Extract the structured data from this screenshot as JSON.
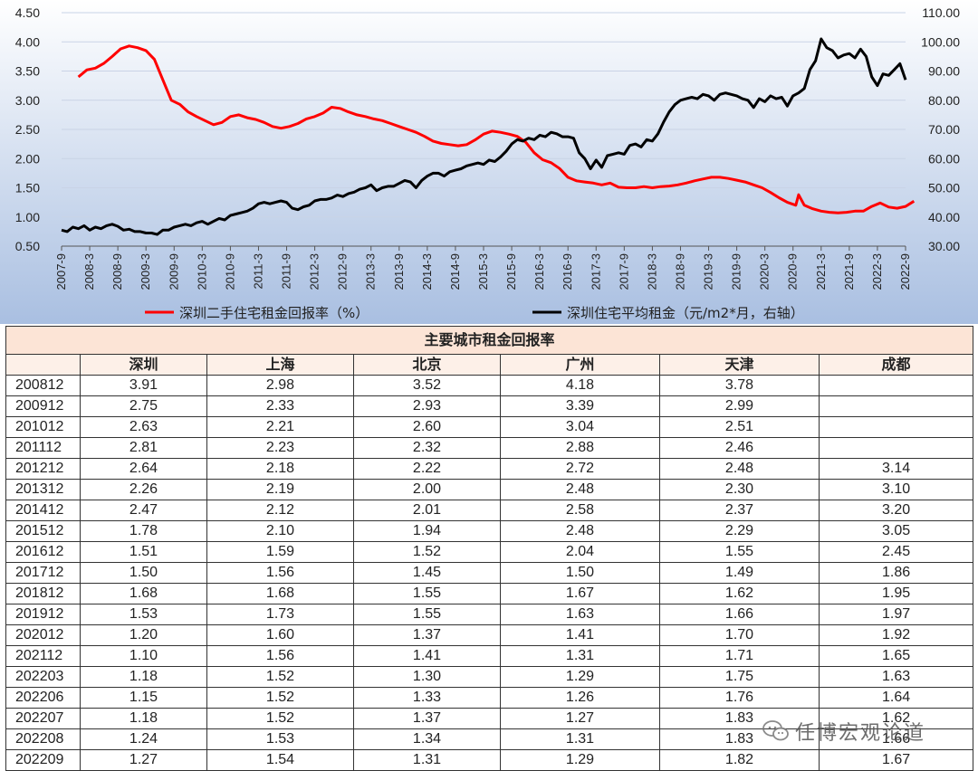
{
  "chart_data": {
    "type": "line",
    "x_tick_labels": [
      "2007-9",
      "2008-3",
      "2008-9",
      "2009-3",
      "2009-9",
      "2010-3",
      "2010-9",
      "2011-3",
      "2011-9",
      "2012-3",
      "2012-9",
      "2013-3",
      "2013-9",
      "2014-3",
      "2014-9",
      "2015-3",
      "2015-9",
      "2016-3",
      "2016-9",
      "2017-3",
      "2017-9",
      "2018-3",
      "2018-9",
      "2019-3",
      "2019-9",
      "2020-3",
      "2020-9",
      "2021-3",
      "2021-9",
      "2022-3",
      "2022-9"
    ],
    "y_left": {
      "min": 0.5,
      "max": 4.5,
      "ticks": [
        "0.50",
        "1.00",
        "1.50",
        "2.00",
        "2.50",
        "3.00",
        "3.50",
        "4.00",
        "4.50"
      ]
    },
    "y_right": {
      "min": 30,
      "max": 110,
      "ticks": [
        "30.00",
        "40.00",
        "50.00",
        "60.00",
        "70.00",
        "80.00",
        "90.00",
        "100.00",
        "110.00"
      ]
    },
    "series": [
      {
        "name": "深圳二手住宅租金回报率（%）",
        "axis": "left",
        "color": "#ff0000",
        "points": [
          [
            6,
            3.4
          ],
          [
            9,
            3.52
          ],
          [
            12,
            3.55
          ],
          [
            15,
            3.63
          ],
          [
            18,
            3.75
          ],
          [
            21,
            3.88
          ],
          [
            24,
            3.93
          ],
          [
            27,
            3.9
          ],
          [
            30,
            3.85
          ],
          [
            33,
            3.7
          ],
          [
            36,
            3.35
          ],
          [
            39,
            3.0
          ],
          [
            42,
            2.93
          ],
          [
            45,
            2.8
          ],
          [
            48,
            2.72
          ],
          [
            51,
            2.65
          ],
          [
            54,
            2.58
          ],
          [
            57,
            2.62
          ],
          [
            60,
            2.72
          ],
          [
            63,
            2.75
          ],
          [
            66,
            2.7
          ],
          [
            69,
            2.67
          ],
          [
            72,
            2.62
          ],
          [
            75,
            2.55
          ],
          [
            78,
            2.52
          ],
          [
            81,
            2.55
          ],
          [
            84,
            2.6
          ],
          [
            87,
            2.68
          ],
          [
            90,
            2.72
          ],
          [
            93,
            2.78
          ],
          [
            96,
            2.88
          ],
          [
            99,
            2.86
          ],
          [
            102,
            2.8
          ],
          [
            105,
            2.75
          ],
          [
            108,
            2.72
          ],
          [
            111,
            2.68
          ],
          [
            114,
            2.65
          ],
          [
            117,
            2.6
          ],
          [
            120,
            2.55
          ],
          [
            123,
            2.5
          ],
          [
            126,
            2.45
          ],
          [
            129,
            2.38
          ],
          [
            132,
            2.3
          ],
          [
            135,
            2.26
          ],
          [
            138,
            2.24
          ],
          [
            141,
            2.22
          ],
          [
            144,
            2.24
          ],
          [
            147,
            2.32
          ],
          [
            150,
            2.42
          ],
          [
            153,
            2.47
          ],
          [
            156,
            2.45
          ],
          [
            159,
            2.42
          ],
          [
            162,
            2.38
          ],
          [
            165,
            2.28
          ],
          [
            168,
            2.1
          ],
          [
            171,
            1.98
          ],
          [
            174,
            1.93
          ],
          [
            177,
            1.83
          ],
          [
            180,
            1.68
          ],
          [
            183,
            1.62
          ],
          [
            186,
            1.6
          ],
          [
            189,
            1.58
          ],
          [
            192,
            1.55
          ],
          [
            195,
            1.58
          ],
          [
            198,
            1.51
          ],
          [
            201,
            1.5
          ],
          [
            204,
            1.5
          ],
          [
            207,
            1.52
          ],
          [
            210,
            1.5
          ],
          [
            213,
            1.52
          ],
          [
            216,
            1.53
          ],
          [
            219,
            1.55
          ],
          [
            222,
            1.58
          ],
          [
            225,
            1.62
          ],
          [
            228,
            1.65
          ],
          [
            231,
            1.68
          ],
          [
            234,
            1.68
          ],
          [
            237,
            1.66
          ],
          [
            240,
            1.63
          ],
          [
            243,
            1.6
          ],
          [
            246,
            1.55
          ],
          [
            249,
            1.5
          ],
          [
            252,
            1.42
          ],
          [
            255,
            1.33
          ],
          [
            258,
            1.25
          ],
          [
            261,
            1.2
          ],
          [
            262,
            1.38
          ],
          [
            264,
            1.2
          ],
          [
            267,
            1.14
          ],
          [
            270,
            1.1
          ],
          [
            273,
            1.08
          ],
          [
            276,
            1.07
          ],
          [
            279,
            1.08
          ],
          [
            282,
            1.1
          ],
          [
            285,
            1.1
          ],
          [
            288,
            1.18
          ],
          [
            291,
            1.24
          ],
          [
            294,
            1.17
          ],
          [
            297,
            1.15
          ],
          [
            300,
            1.18
          ],
          [
            303,
            1.27
          ]
        ]
      },
      {
        "name": "深圳住宅平均租金（元/m2*月，右轴）",
        "axis": "right",
        "color": "#000000",
        "points": [
          [
            0,
            35.5
          ],
          [
            2,
            35.0
          ],
          [
            4,
            36.5
          ],
          [
            6,
            36.0
          ],
          [
            8,
            37.0
          ],
          [
            10,
            35.5
          ],
          [
            12,
            36.5
          ],
          [
            14,
            36.0
          ],
          [
            16,
            37.0
          ],
          [
            18,
            37.5
          ],
          [
            20,
            36.8
          ],
          [
            22,
            35.5
          ],
          [
            24,
            35.8
          ],
          [
            26,
            35.0
          ],
          [
            28,
            35.0
          ],
          [
            30,
            34.5
          ],
          [
            32,
            34.5
          ],
          [
            34,
            34.0
          ],
          [
            36,
            35.5
          ],
          [
            38,
            35.5
          ],
          [
            40,
            36.5
          ],
          [
            42,
            37.0
          ],
          [
            44,
            37.5
          ],
          [
            46,
            37.0
          ],
          [
            48,
            38.0
          ],
          [
            50,
            38.5
          ],
          [
            52,
            37.5
          ],
          [
            54,
            38.5
          ],
          [
            56,
            39.5
          ],
          [
            58,
            39.0
          ],
          [
            60,
            40.5
          ],
          [
            62,
            41.0
          ],
          [
            64,
            41.5
          ],
          [
            66,
            42.0
          ],
          [
            68,
            43.0
          ],
          [
            70,
            44.5
          ],
          [
            72,
            45.0
          ],
          [
            74,
            44.5
          ],
          [
            76,
            45.0
          ],
          [
            78,
            45.5
          ],
          [
            80,
            45.0
          ],
          [
            82,
            43.0
          ],
          [
            84,
            42.5
          ],
          [
            86,
            43.5
          ],
          [
            88,
            44.0
          ],
          [
            90,
            45.5
          ],
          [
            92,
            46.0
          ],
          [
            94,
            46.0
          ],
          [
            96,
            46.5
          ],
          [
            98,
            47.5
          ],
          [
            100,
            47.0
          ],
          [
            102,
            48.0
          ],
          [
            104,
            48.5
          ],
          [
            106,
            49.5
          ],
          [
            108,
            50.0
          ],
          [
            110,
            51.0
          ],
          [
            112,
            49.0
          ],
          [
            114,
            50.0
          ],
          [
            116,
            50.5
          ],
          [
            118,
            50.5
          ],
          [
            120,
            51.5
          ],
          [
            122,
            52.5
          ],
          [
            124,
            52.0
          ],
          [
            126,
            50.0
          ],
          [
            128,
            52.5
          ],
          [
            130,
            54.0
          ],
          [
            132,
            55.0
          ],
          [
            134,
            55.0
          ],
          [
            136,
            54.0
          ],
          [
            138,
            55.5
          ],
          [
            140,
            56.0
          ],
          [
            142,
            56.5
          ],
          [
            144,
            57.5
          ],
          [
            146,
            58.0
          ],
          [
            148,
            58.5
          ],
          [
            150,
            58.0
          ],
          [
            152,
            59.5
          ],
          [
            154,
            59.0
          ],
          [
            156,
            60.5
          ],
          [
            158,
            62.5
          ],
          [
            160,
            65.0
          ],
          [
            162,
            66.5
          ],
          [
            164,
            66.0
          ],
          [
            166,
            67.0
          ],
          [
            168,
            66.5
          ],
          [
            170,
            68.0
          ],
          [
            172,
            67.5
          ],
          [
            174,
            69.0
          ],
          [
            176,
            68.5
          ],
          [
            178,
            67.5
          ],
          [
            180,
            67.5
          ],
          [
            182,
            67.0
          ],
          [
            184,
            62.0
          ],
          [
            186,
            60.0
          ],
          [
            188,
            56.5
          ],
          [
            190,
            59.5
          ],
          [
            192,
            57.0
          ],
          [
            194,
            61.0
          ],
          [
            196,
            61.5
          ],
          [
            198,
            62.0
          ],
          [
            200,
            61.5
          ],
          [
            202,
            64.5
          ],
          [
            204,
            65.0
          ],
          [
            206,
            64.0
          ],
          [
            208,
            66.5
          ],
          [
            210,
            66.0
          ],
          [
            212,
            68.5
          ],
          [
            214,
            72.5
          ],
          [
            216,
            76.0
          ],
          [
            218,
            78.5
          ],
          [
            220,
            80.0
          ],
          [
            222,
            80.5
          ],
          [
            224,
            81.0
          ],
          [
            226,
            80.5
          ],
          [
            228,
            82.0
          ],
          [
            230,
            81.5
          ],
          [
            232,
            80.0
          ],
          [
            234,
            82.0
          ],
          [
            236,
            82.5
          ],
          [
            238,
            82.0
          ],
          [
            240,
            81.5
          ],
          [
            242,
            80.5
          ],
          [
            244,
            80.0
          ],
          [
            246,
            77.5
          ],
          [
            248,
            80.5
          ],
          [
            250,
            79.5
          ],
          [
            252,
            81.5
          ],
          [
            254,
            80.5
          ],
          [
            256,
            81.0
          ],
          [
            258,
            78.0
          ],
          [
            260,
            81.5
          ],
          [
            262,
            82.5
          ],
          [
            264,
            84.0
          ],
          [
            266,
            90.5
          ],
          [
            268,
            93.5
          ],
          [
            270,
            101.0
          ],
          [
            272,
            98.0
          ],
          [
            274,
            97.0
          ],
          [
            276,
            94.5
          ],
          [
            278,
            95.5
          ],
          [
            280,
            96.0
          ],
          [
            282,
            94.5
          ],
          [
            284,
            97.5
          ],
          [
            286,
            95.0
          ],
          [
            288,
            88.0
          ],
          [
            290,
            85.0
          ],
          [
            292,
            89.0
          ],
          [
            294,
            88.5
          ],
          [
            296,
            90.5
          ],
          [
            298,
            92.5
          ],
          [
            300,
            87.0
          ]
        ]
      }
    ]
  },
  "table": {
    "title": "主要城市租金回报率",
    "headers": [
      "",
      "深圳",
      "上海",
      "北京",
      "广州",
      "天津",
      "成都"
    ],
    "rows": [
      [
        "200812",
        "3.91",
        "2.98",
        "3.52",
        "4.18",
        "3.78",
        ""
      ],
      [
        "200912",
        "2.75",
        "2.33",
        "2.93",
        "3.39",
        "2.99",
        ""
      ],
      [
        "201012",
        "2.63",
        "2.21",
        "2.60",
        "3.04",
        "2.51",
        ""
      ],
      [
        "201112",
        "2.81",
        "2.23",
        "2.32",
        "2.88",
        "2.46",
        ""
      ],
      [
        "201212",
        "2.64",
        "2.18",
        "2.22",
        "2.72",
        "2.48",
        "3.14"
      ],
      [
        "201312",
        "2.26",
        "2.19",
        "2.00",
        "2.48",
        "2.30",
        "3.10"
      ],
      [
        "201412",
        "2.47",
        "2.12",
        "2.01",
        "2.58",
        "2.37",
        "3.20"
      ],
      [
        "201512",
        "1.78",
        "2.10",
        "1.94",
        "2.48",
        "2.29",
        "3.05"
      ],
      [
        "201612",
        "1.51",
        "1.59",
        "1.52",
        "2.04",
        "1.55",
        "2.45"
      ],
      [
        "201712",
        "1.50",
        "1.56",
        "1.45",
        "1.50",
        "1.49",
        "1.86"
      ],
      [
        "201812",
        "1.68",
        "1.68",
        "1.55",
        "1.67",
        "1.62",
        "1.95"
      ],
      [
        "201912",
        "1.53",
        "1.73",
        "1.55",
        "1.63",
        "1.66",
        "1.97"
      ],
      [
        "202012",
        "1.20",
        "1.60",
        "1.37",
        "1.41",
        "1.70",
        "1.92"
      ],
      [
        "202112",
        "1.10",
        "1.56",
        "1.41",
        "1.31",
        "1.71",
        "1.65"
      ],
      [
        "202203",
        "1.18",
        "1.52",
        "1.30",
        "1.29",
        "1.75",
        "1.63"
      ],
      [
        "202206",
        "1.15",
        "1.52",
        "1.33",
        "1.26",
        "1.76",
        "1.64"
      ],
      [
        "202207",
        "1.18",
        "1.52",
        "1.37",
        "1.27",
        "1.83",
        "1.62"
      ],
      [
        "202208",
        "1.24",
        "1.53",
        "1.34",
        "1.31",
        "1.83",
        "1.66"
      ],
      [
        "202209",
        "1.27",
        "1.54",
        "1.31",
        "1.29",
        "1.82",
        "1.67"
      ]
    ]
  },
  "watermark": {
    "text": "任博宏观论道",
    "icon": "wechat-icon"
  }
}
